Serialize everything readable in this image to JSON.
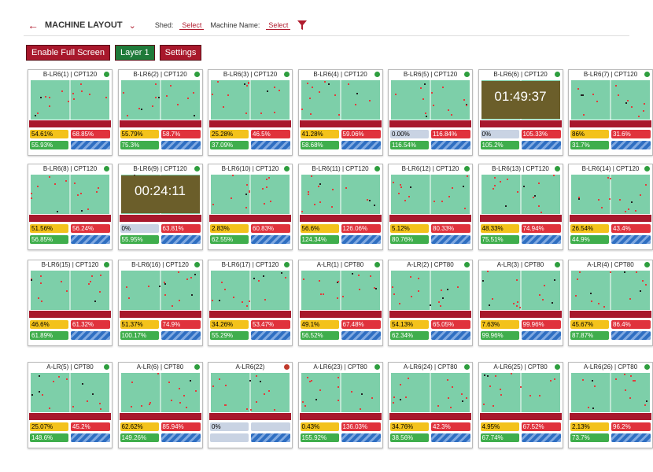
{
  "header": {
    "title": "MACHINE LAYOUT",
    "shed_label": "Shed:",
    "shed_value": "Select",
    "machine_label": "Machine Name:",
    "machine_value": "Select"
  },
  "buttons": [
    "Enable Full Screen",
    "Layer 1",
    "Settings"
  ],
  "machines": [
    {
      "title": "B-LR6(1) | CPT120",
      "status": "#2e9e3e",
      "pct1": "54.61%",
      "pct2": "68.85%",
      "pct3": "55.93%"
    },
    {
      "title": "B-LR6(2) | CPT120",
      "status": "#2e9e3e",
      "pct1": "55.79%",
      "pct2": "58.7%",
      "pct3": "75.3%"
    },
    {
      "title": "B-LR6(3) | CPT120",
      "status": "#2e9e3e",
      "pct1": "25.28%",
      "pct2": "46.5%",
      "pct3": "37.09%"
    },
    {
      "title": "B-LR6(4) | CPT120",
      "status": "#2e9e3e",
      "pct1": "41.28%",
      "pct2": "59.06%",
      "pct3": "58.68%"
    },
    {
      "title": "B-LR6(5) | CPT120",
      "status": "#2e9e3e",
      "pct1": "0.00%",
      "pct2": "116.84%",
      "pct3": "116.54%"
    },
    {
      "title": "B-LR6(6) | CPT120",
      "status": "#2e9e3e",
      "pct1": "0%",
      "pct2": "105.33%",
      "pct3": "105.2%",
      "timer": "01:49:37"
    },
    {
      "title": "B-LR6(7) | CPT120",
      "status": "#2e9e3e",
      "pct1": "86%",
      "pct2": "31.6%",
      "pct3": "31.7%"
    },
    {
      "title": "B-LR6(8) | CPT120",
      "status": "#2e9e3e",
      "pct1": "51.56%",
      "pct2": "56.24%",
      "pct3": "56.85%"
    },
    {
      "title": "B-LR6(9) | CPT120",
      "status": "#2e9e3e",
      "pct1": "0%",
      "pct2": "63.81%",
      "pct3": "55.95%",
      "timer": "00:24:11"
    },
    {
      "title": "B-LR6(10) | CPT120",
      "status": "#2e9e3e",
      "pct1": "2.83%",
      "pct2": "60.83%",
      "pct3": "62.55%"
    },
    {
      "title": "B-LR6(11) | CPT120",
      "status": "#2e9e3e",
      "pct1": "56.6%",
      "pct2": "126.06%",
      "pct3": "124.34%"
    },
    {
      "title": "B-LR6(12) | CPT120",
      "status": "#2e9e3e",
      "pct1": "5.12%",
      "pct2": "80.33%",
      "pct3": "80.76%"
    },
    {
      "title": "B-LR6(13) | CPT120",
      "status": "#2e9e3e",
      "pct1": "48.33%",
      "pct2": "74.94%",
      "pct3": "75.51%"
    },
    {
      "title": "B-LR6(14) | CPT120",
      "status": "#2e9e3e",
      "pct1": "26.54%",
      "pct2": "43.4%",
      "pct3": "44.9%"
    },
    {
      "title": "B-LR6(15) | CPT120",
      "status": "#2e9e3e",
      "pct1": "46.6%",
      "pct2": "61.32%",
      "pct3": "61.89%"
    },
    {
      "title": "B-LR6(16) | CPT120",
      "status": "#2e9e3e",
      "pct1": "51.37%",
      "pct2": "74.9%",
      "pct3": "100.17%"
    },
    {
      "title": "B-LR6(17) | CPT120",
      "status": "#2e9e3e",
      "pct1": "34.26%",
      "pct2": "53.47%",
      "pct3": "55.29%"
    },
    {
      "title": "A-LR(1) | CPT80",
      "status": "#2e9e3e",
      "pct1": "49.1%",
      "pct2": "67.48%",
      "pct3": "56.52%"
    },
    {
      "title": "A-LR(2) | CPT80",
      "status": "#2e9e3e",
      "pct1": "54.13%",
      "pct2": "65.05%",
      "pct3": "62.34%"
    },
    {
      "title": "A-LR(3) | CPT80",
      "status": "#2e9e3e",
      "pct1": "7.63%",
      "pct2": "99.96%",
      "pct3": "99.96%"
    },
    {
      "title": "A-LR(4) | CPT80",
      "status": "#2e9e3e",
      "pct1": "45.67%",
      "pct2": "86.4%",
      "pct3": "87.87%"
    },
    {
      "title": "A-LR(5) | CPT80",
      "status": "#2e9e3e",
      "pct1": "25.07%",
      "pct2": "45.2%",
      "pct3": "148.6%"
    },
    {
      "title": "A-LR(6) | CPT80",
      "status": "#2e9e3e",
      "pct1": "62.62%",
      "pct2": "85.94%",
      "pct3": "149.26%"
    },
    {
      "title": "A-LR6(22)",
      "status": "#c0392b",
      "pct1": "0%"
    },
    {
      "title": "A-LR6(23) | CPT80",
      "status": "#2e9e3e",
      "pct1": "0.43%",
      "pct2": "136.03%",
      "pct3": "155.92%"
    },
    {
      "title": "A-LR6(24) | CPT80",
      "status": "#2e9e3e",
      "pct1": "34.76%",
      "pct2": "42.3%",
      "pct3": "38.56%"
    },
    {
      "title": "A-LR6(25) | CPT80",
      "status": "#2e9e3e",
      "pct1": "4.95%",
      "pct2": "67.52%",
      "pct3": "67.74%"
    },
    {
      "title": "A-LR6(26) | CPT80",
      "status": "#2e9e3e",
      "pct1": "2.13%",
      "pct2": "96.2%",
      "pct3": "73.7%"
    }
  ]
}
